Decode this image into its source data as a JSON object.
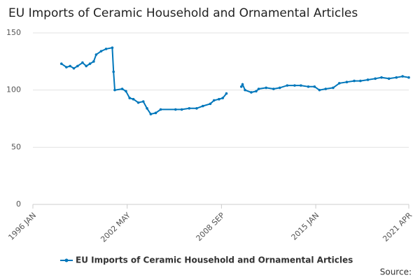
{
  "chart_data": {
    "type": "line",
    "title": "EU Imports of Ceramic Household and Ornamental Articles",
    "x": [
      "1997 DEC",
      "1998 APR",
      "1998 JUL",
      "1998 OCT",
      "1999 JAN",
      "1999 MAY",
      "1999 AUG",
      "1999 NOV",
      "2000 FEB",
      "2000 APR",
      "2000 AUG",
      "2000 DEC",
      "2001 MAY",
      "2001 JUN",
      "2001 JUL",
      "2002 JAN",
      "2002 APR",
      "2002 JUL",
      "2002 OCT",
      "2003 FEB",
      "2003 JUN",
      "2003 SEP",
      "2003 DEC",
      "2004 APR",
      "2004 AUG",
      "2005 AUG",
      "2006 JAN",
      "2006 JUL",
      "2007 JAN",
      "2007 JUN",
      "2007 DEC",
      "2008 MAR",
      "2008 JUL",
      "2008 OCT",
      "2009 JAN",
      "2009 JUL",
      "2010 JAN",
      "2010 FEB",
      "2010 APR",
      "2010 SEP",
      "2011 JAN",
      "2011 MAR",
      "2011 SEP",
      "2012 MAR",
      "2012 AUG",
      "2013 FEB",
      "2013 AUG",
      "2014 JAN",
      "2014 JUL",
      "2014 DEC",
      "2015 APR",
      "2015 SEP",
      "2016 MAR",
      "2016 AUG",
      "2017 FEB",
      "2017 AUG",
      "2018 JAN",
      "2018 JUL",
      "2019 JAN",
      "2019 JUN",
      "2019 DEC",
      "2020 JUN",
      "2020 NOV",
      "2021 APR"
    ],
    "series": [
      {
        "name": "EU Imports of Ceramic Household and Ornamental Articles",
        "color": "#0077bb",
        "values": [
          123,
          120,
          121,
          119,
          121,
          124,
          121,
          123,
          125,
          131,
          134,
          136,
          137,
          116,
          100,
          101,
          99,
          93,
          92,
          89,
          90,
          84,
          79,
          80,
          83,
          83,
          83,
          84,
          84,
          86,
          88,
          91,
          92,
          93,
          97,
          null,
          103,
          105,
          100,
          98,
          99,
          101,
          102,
          101,
          102,
          104,
          104,
          104,
          103,
          103,
          100,
          101,
          102,
          106,
          107,
          108,
          108,
          109,
          110,
          111,
          110,
          111,
          112,
          111
        ]
      }
    ],
    "xlim": [
      "1996 JAN",
      "2021 APR"
    ],
    "xticks": [
      "1996 JAN",
      "2002 MAY",
      "2008 SEP",
      "2015 JAN",
      "2021 APR"
    ],
    "ylim": [
      0,
      150
    ],
    "yticks": [
      0,
      50,
      100,
      150
    ],
    "grid": true,
    "legend": "bottom",
    "source": "Source:"
  }
}
